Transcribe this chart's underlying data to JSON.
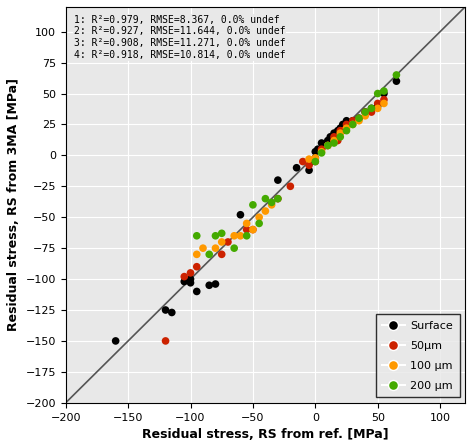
{
  "title": "",
  "xlabel": "Residual stress, RS from ref. [MPa]",
  "ylabel": "Residual stress, RS from 3MA [MPa]",
  "xlim": [
    -200,
    120
  ],
  "ylim": [
    -200,
    120
  ],
  "xticks": [
    -200,
    -150,
    -100,
    -50,
    0,
    50,
    100
  ],
  "yticks": [
    -200,
    -175,
    -150,
    -125,
    -100,
    -75,
    -50,
    -25,
    0,
    25,
    50,
    75,
    100
  ],
  "annotation_lines": [
    "1: R²=0.979, RMSE=8.367, 0.0% undef",
    "2: R²=0.927, RMSE=11.644, 0.0% undef",
    "3: R²=0.908, RMSE=11.271, 0.0% undef",
    "4: R²=0.918, RMSE=10.814, 0.0% undef"
  ],
  "legend_labels": [
    "Surface",
    "50μm",
    "100 μm",
    "200 μm"
  ],
  "colors": {
    "Surface": "#000000",
    "50um": "#cc2200",
    "100um": "#ff9900",
    "200um": "#44aa00"
  },
  "background_color": "#e8e8e8",
  "grid_color": "#ffffff",
  "scatter_data": {
    "black": [
      [
        -160,
        -150
      ],
      [
        -120,
        -125
      ],
      [
        -115,
        -127
      ],
      [
        -105,
        -102
      ],
      [
        -100,
        -103
      ],
      [
        -100,
        -100
      ],
      [
        -95,
        -110
      ],
      [
        -85,
        -105
      ],
      [
        -80,
        -104
      ],
      [
        -60,
        -48
      ],
      [
        -30,
        -20
      ],
      [
        -15,
        -10
      ],
      [
        -5,
        -12
      ],
      [
        -3,
        -5
      ],
      [
        0,
        -2
      ],
      [
        0,
        3
      ],
      [
        2,
        5
      ],
      [
        5,
        10
      ],
      [
        8,
        8
      ],
      [
        10,
        12
      ],
      [
        12,
        15
      ],
      [
        15,
        18
      ],
      [
        18,
        20
      ],
      [
        20,
        22
      ],
      [
        22,
        25
      ],
      [
        25,
        28
      ],
      [
        30,
        28
      ],
      [
        35,
        30
      ],
      [
        40,
        35
      ],
      [
        45,
        38
      ],
      [
        50,
        40
      ],
      [
        55,
        50
      ],
      [
        65,
        60
      ]
    ],
    "red": [
      [
        -120,
        -150
      ],
      [
        -105,
        -98
      ],
      [
        -100,
        -95
      ],
      [
        -95,
        -90
      ],
      [
        -75,
        -80
      ],
      [
        -70,
        -70
      ],
      [
        -55,
        -60
      ],
      [
        -50,
        -60
      ],
      [
        -30,
        -35
      ],
      [
        -20,
        -25
      ],
      [
        -10,
        -5
      ],
      [
        -5,
        -8
      ],
      [
        0,
        -5
      ],
      [
        5,
        5
      ],
      [
        10,
        8
      ],
      [
        15,
        15
      ],
      [
        18,
        12
      ],
      [
        20,
        20
      ],
      [
        22,
        20
      ],
      [
        25,
        25
      ],
      [
        30,
        28
      ],
      [
        35,
        30
      ],
      [
        40,
        35
      ],
      [
        45,
        35
      ],
      [
        50,
        42
      ],
      [
        55,
        45
      ]
    ],
    "orange": [
      [
        -95,
        -80
      ],
      [
        -90,
        -75
      ],
      [
        -80,
        -75
      ],
      [
        -75,
        -70
      ],
      [
        -65,
        -65
      ],
      [
        -60,
        -65
      ],
      [
        -55,
        -55
      ],
      [
        -50,
        -60
      ],
      [
        -45,
        -50
      ],
      [
        -40,
        -45
      ],
      [
        -35,
        -40
      ],
      [
        -5,
        -3
      ],
      [
        0,
        -2
      ],
      [
        5,
        3
      ],
      [
        10,
        8
      ],
      [
        15,
        12
      ],
      [
        20,
        18
      ],
      [
        25,
        22
      ],
      [
        30,
        25
      ],
      [
        35,
        28
      ],
      [
        40,
        32
      ],
      [
        50,
        38
      ],
      [
        55,
        42
      ]
    ],
    "green": [
      [
        -95,
        -65
      ],
      [
        -85,
        -80
      ],
      [
        -80,
        -65
      ],
      [
        -75,
        -63
      ],
      [
        -65,
        -75
      ],
      [
        -55,
        -65
      ],
      [
        -50,
        -40
      ],
      [
        -45,
        -55
      ],
      [
        -40,
        -35
      ],
      [
        -35,
        -38
      ],
      [
        -30,
        -35
      ],
      [
        0,
        -5
      ],
      [
        5,
        2
      ],
      [
        10,
        8
      ],
      [
        15,
        10
      ],
      [
        20,
        15
      ],
      [
        25,
        20
      ],
      [
        30,
        25
      ],
      [
        35,
        30
      ],
      [
        40,
        35
      ],
      [
        45,
        38
      ],
      [
        50,
        50
      ],
      [
        55,
        52
      ],
      [
        65,
        65
      ]
    ]
  }
}
